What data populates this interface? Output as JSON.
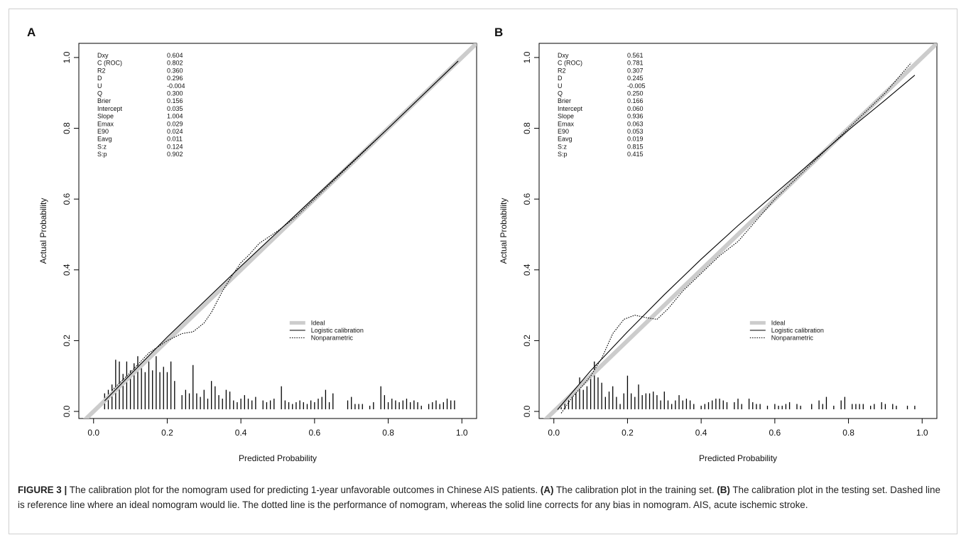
{
  "chart_data": [
    {
      "type": "line",
      "panel_label": "A",
      "xlabel": "Predicted Probability",
      "ylabel": "Actual Probability",
      "xlim": [
        -0.04,
        1.04
      ],
      "ylim": [
        -0.02,
        1.04
      ],
      "xticks": [
        "0.0",
        "0.2",
        "0.4",
        "0.6",
        "0.8",
        "1.0"
      ],
      "yticks": [
        "0.0",
        "0.2",
        "0.4",
        "0.6",
        "0.8",
        "1.0"
      ],
      "legend_position": "center-right",
      "stats": [
        {
          "name": "Dxy",
          "value": "0.604"
        },
        {
          "name": "C (ROC)",
          "value": "0.802"
        },
        {
          "name": "R2",
          "value": "0.360"
        },
        {
          "name": "D",
          "value": "0.296"
        },
        {
          "name": "U",
          "value": "-0.004"
        },
        {
          "name": "Q",
          "value": "0.300"
        },
        {
          "name": "Brier",
          "value": "0.156"
        },
        {
          "name": "Intercept",
          "value": "0.035"
        },
        {
          "name": "Slope",
          "value": "1.004"
        },
        {
          "name": "Emax",
          "value": "0.029"
        },
        {
          "name": "E90",
          "value": "0.024"
        },
        {
          "name": "Eavg",
          "value": "0.011"
        },
        {
          "name": "S:z",
          "value": "0.124"
        },
        {
          "name": "S:p",
          "value": "0.902"
        }
      ],
      "series": [
        {
          "name": "Ideal",
          "style": "thick-gray",
          "color": "#cccccc",
          "x": [
            -0.04,
            1.04
          ],
          "y": [
            -0.04,
            1.04
          ]
        },
        {
          "name": "Logistic calibration",
          "style": "solid",
          "color": "#000000",
          "x": [
            0.03,
            0.2,
            0.4,
            0.6,
            0.8,
            0.99
          ],
          "y": [
            0.03,
            0.21,
            0.41,
            0.605,
            0.8,
            0.99
          ]
        },
        {
          "name": "Nonparametric",
          "style": "dotted",
          "color": "#000000",
          "x": [
            0.05,
            0.1,
            0.15,
            0.2,
            0.24,
            0.27,
            0.3,
            0.32,
            0.35,
            0.38,
            0.4,
            0.42,
            0.45,
            0.5,
            0.55,
            0.6,
            0.7,
            0.8,
            0.9,
            0.99
          ],
          "y": [
            0.06,
            0.11,
            0.165,
            0.2,
            0.22,
            0.225,
            0.25,
            0.28,
            0.34,
            0.39,
            0.42,
            0.44,
            0.475,
            0.51,
            0.55,
            0.6,
            0.7,
            0.8,
            0.9,
            0.99
          ]
        }
      ],
      "histogram": {
        "x": [
          0.03,
          0.04,
          0.05,
          0.06,
          0.07,
          0.08,
          0.09,
          0.1,
          0.11,
          0.12,
          0.13,
          0.14,
          0.15,
          0.16,
          0.17,
          0.18,
          0.19,
          0.2,
          0.21,
          0.22,
          0.24,
          0.25,
          0.26,
          0.27,
          0.28,
          0.29,
          0.3,
          0.31,
          0.32,
          0.33,
          0.34,
          0.35,
          0.36,
          0.37,
          0.38,
          0.39,
          0.4,
          0.41,
          0.42,
          0.43,
          0.44,
          0.46,
          0.47,
          0.48,
          0.49,
          0.51,
          0.52,
          0.53,
          0.54,
          0.55,
          0.56,
          0.57,
          0.58,
          0.59,
          0.6,
          0.61,
          0.62,
          0.63,
          0.64,
          0.65,
          0.69,
          0.7,
          0.71,
          0.72,
          0.73,
          0.75,
          0.76,
          0.78,
          0.79,
          0.8,
          0.81,
          0.82,
          0.83,
          0.84,
          0.85,
          0.86,
          0.87,
          0.88,
          0.89,
          0.91,
          0.92,
          0.93,
          0.94,
          0.95,
          0.96,
          0.97,
          0.98
        ],
        "h": [
          0.045,
          0.055,
          0.07,
          0.14,
          0.135,
          0.1,
          0.135,
          0.11,
          0.13,
          0.15,
          0.12,
          0.105,
          0.135,
          0.11,
          0.15,
          0.105,
          0.12,
          0.105,
          0.135,
          0.08,
          0.04,
          0.055,
          0.045,
          0.125,
          0.045,
          0.035,
          0.055,
          0.03,
          0.08,
          0.065,
          0.04,
          0.03,
          0.055,
          0.05,
          0.025,
          0.02,
          0.03,
          0.04,
          0.03,
          0.025,
          0.035,
          0.025,
          0.02,
          0.025,
          0.03,
          0.065,
          0.025,
          0.02,
          0.015,
          0.02,
          0.025,
          0.02,
          0.015,
          0.025,
          0.02,
          0.03,
          0.035,
          0.055,
          0.02,
          0.045,
          0.025,
          0.035,
          0.015,
          0.015,
          0.015,
          0.01,
          0.02,
          0.065,
          0.04,
          0.02,
          0.03,
          0.025,
          0.02,
          0.025,
          0.03,
          0.02,
          0.025,
          0.02,
          0.01,
          0.015,
          0.02,
          0.025,
          0.015,
          0.02,
          0.03,
          0.025,
          0.025
        ]
      }
    },
    {
      "type": "line",
      "panel_label": "B",
      "xlabel": "Predicted Probability",
      "ylabel": "Actual Probability",
      "xlim": [
        -0.04,
        1.04
      ],
      "ylim": [
        -0.02,
        1.04
      ],
      "xticks": [
        "0.0",
        "0.2",
        "0.4",
        "0.6",
        "0.8",
        "1.0"
      ],
      "yticks": [
        "0.0",
        "0.2",
        "0.4",
        "0.6",
        "0.8",
        "1.0"
      ],
      "legend_position": "center-right",
      "stats": [
        {
          "name": "Dxy",
          "value": "0.561"
        },
        {
          "name": "C (ROC)",
          "value": "0.781"
        },
        {
          "name": "R2",
          "value": "0.307"
        },
        {
          "name": "D",
          "value": "0.245"
        },
        {
          "name": "U",
          "value": "-0.005"
        },
        {
          "name": "Q",
          "value": "0.250"
        },
        {
          "name": "Brier",
          "value": "0.166"
        },
        {
          "name": "Intercept",
          "value": "0.060"
        },
        {
          "name": "Slope",
          "value": "0.936"
        },
        {
          "name": "Emax",
          "value": "0.063"
        },
        {
          "name": "E90",
          "value": "0.053"
        },
        {
          "name": "Eavg",
          "value": "0.019"
        },
        {
          "name": "S:z",
          "value": "0.815"
        },
        {
          "name": "S:p",
          "value": "0.415"
        }
      ],
      "series": [
        {
          "name": "Ideal",
          "style": "thick-gray",
          "color": "#cccccc",
          "x": [
            -0.04,
            1.04
          ],
          "y": [
            -0.04,
            1.04
          ]
        },
        {
          "name": "Logistic calibration",
          "style": "solid",
          "color": "#000000",
          "x": [
            0.01,
            0.1,
            0.2,
            0.3,
            0.4,
            0.5,
            0.6,
            0.7,
            0.8,
            0.9,
            0.98
          ],
          "y": [
            0.005,
            0.115,
            0.225,
            0.33,
            0.43,
            0.525,
            0.615,
            0.705,
            0.795,
            0.88,
            0.95
          ]
        },
        {
          "name": "Nonparametric",
          "style": "dotted",
          "color": "#000000",
          "x": [
            0.02,
            0.05,
            0.08,
            0.1,
            0.13,
            0.16,
            0.19,
            0.22,
            0.25,
            0.28,
            0.31,
            0.35,
            0.4,
            0.45,
            0.5,
            0.55,
            0.6,
            0.7,
            0.8,
            0.9,
            0.97
          ],
          "y": [
            -0.005,
            0.04,
            0.075,
            0.1,
            0.15,
            0.22,
            0.26,
            0.272,
            0.265,
            0.26,
            0.29,
            0.34,
            0.39,
            0.44,
            0.48,
            0.54,
            0.6,
            0.7,
            0.8,
            0.9,
            0.985
          ]
        }
      ],
      "histogram": {
        "x": [
          0.02,
          0.03,
          0.04,
          0.05,
          0.06,
          0.07,
          0.08,
          0.09,
          0.1,
          0.11,
          0.12,
          0.13,
          0.14,
          0.15,
          0.16,
          0.17,
          0.18,
          0.19,
          0.2,
          0.21,
          0.22,
          0.23,
          0.24,
          0.25,
          0.26,
          0.27,
          0.28,
          0.29,
          0.3,
          0.31,
          0.32,
          0.33,
          0.34,
          0.35,
          0.36,
          0.37,
          0.38,
          0.4,
          0.41,
          0.42,
          0.43,
          0.44,
          0.45,
          0.46,
          0.47,
          0.49,
          0.5,
          0.51,
          0.53,
          0.54,
          0.55,
          0.56,
          0.58,
          0.6,
          0.61,
          0.62,
          0.63,
          0.64,
          0.66,
          0.67,
          0.7,
          0.72,
          0.73,
          0.74,
          0.76,
          0.78,
          0.79,
          0.81,
          0.82,
          0.83,
          0.84,
          0.86,
          0.87,
          0.89,
          0.9,
          0.92,
          0.93,
          0.96,
          0.98
        ],
        "h": [
          0.02,
          0.03,
          0.035,
          0.045,
          0.06,
          0.09,
          0.055,
          0.065,
          0.09,
          0.135,
          0.09,
          0.075,
          0.035,
          0.05,
          0.065,
          0.035,
          0.015,
          0.045,
          0.095,
          0.045,
          0.035,
          0.07,
          0.04,
          0.045,
          0.045,
          0.05,
          0.04,
          0.025,
          0.05,
          0.025,
          0.015,
          0.025,
          0.04,
          0.025,
          0.03,
          0.025,
          0.015,
          0.01,
          0.015,
          0.02,
          0.025,
          0.03,
          0.03,
          0.025,
          0.02,
          0.02,
          0.03,
          0.015,
          0.03,
          0.02,
          0.015,
          0.015,
          0.01,
          0.015,
          0.01,
          0.01,
          0.015,
          0.02,
          0.015,
          0.01,
          0.015,
          0.025,
          0.015,
          0.035,
          0.01,
          0.025,
          0.035,
          0.015,
          0.015,
          0.015,
          0.015,
          0.01,
          0.015,
          0.02,
          0.015,
          0.015,
          0.01,
          0.01,
          0.01
        ]
      }
    }
  ],
  "caption": {
    "fig_label": "FIGURE 3 |",
    "main": " The calibration plot for the nomogram used for predicting 1-year unfavorable outcomes in Chinese AIS patients. ",
    "a_label": "(A)",
    "a_text": " The calibration plot in the training set. ",
    "b_label": "(B)",
    "b_text": " The calibration plot in the testing set. Dashed line is reference line where an ideal nomogram would lie. The dotted line is the performance of nomogram, whereas the solid line corrects for any bias in nomogram. AIS, acute ischemic stroke."
  }
}
